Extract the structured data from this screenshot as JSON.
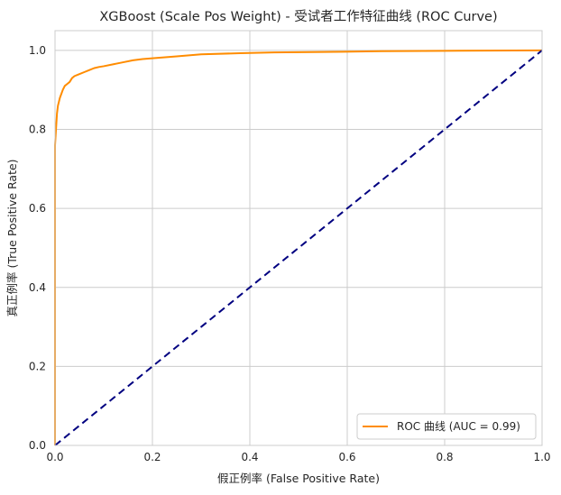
{
  "chart_data": {
    "type": "line",
    "title": "XGBoost (Scale Pos Weight) - 受试者工作特征曲线 (ROC Curve)",
    "xlabel": "假正例率 (False Positive Rate)",
    "ylabel": "真正例率 (True Positive Rate)",
    "xlim": [
      0,
      1
    ],
    "ylim": [
      0,
      1.05
    ],
    "x_ticks": [
      "0.0",
      "0.2",
      "0.4",
      "0.6",
      "0.8",
      "1.0"
    ],
    "y_ticks": [
      "0.0",
      "0.2",
      "0.4",
      "0.6",
      "0.8",
      "1.0"
    ],
    "grid": true,
    "legend_position": "lower-right",
    "series": [
      {
        "name": "ROC 曲线 (AUC = 0.99)",
        "color": "#ff8c00",
        "style": "solid",
        "x": [
          0.0,
          0.0,
          0.002,
          0.004,
          0.006,
          0.008,
          0.01,
          0.013,
          0.016,
          0.02,
          0.025,
          0.03,
          0.035,
          0.04,
          0.05,
          0.06,
          0.07,
          0.08,
          0.09,
          0.1,
          0.12,
          0.14,
          0.16,
          0.18,
          0.2,
          0.25,
          0.3,
          0.38,
          0.45,
          0.55,
          0.67,
          0.8,
          1.0
        ],
        "y": [
          0.0,
          0.76,
          0.8,
          0.84,
          0.86,
          0.87,
          0.88,
          0.89,
          0.9,
          0.91,
          0.915,
          0.92,
          0.93,
          0.935,
          0.94,
          0.945,
          0.95,
          0.955,
          0.958,
          0.96,
          0.965,
          0.97,
          0.975,
          0.978,
          0.98,
          0.985,
          0.99,
          0.993,
          0.995,
          0.996,
          0.998,
          0.999,
          1.0
        ]
      },
      {
        "name": "",
        "color": "#000080",
        "style": "dashed",
        "x": [
          0,
          1
        ],
        "y": [
          0,
          1
        ]
      }
    ]
  }
}
